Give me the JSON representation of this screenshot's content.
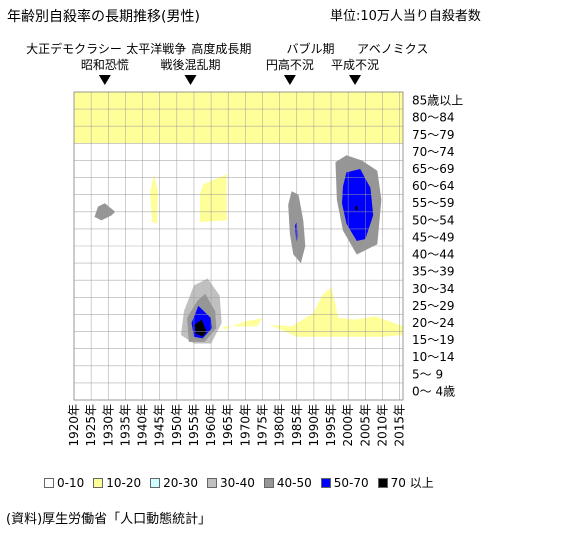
{
  "header": {
    "title": "年齢別自殺率の長期推移(男性)",
    "unit": "単位:10万人当り自殺者数"
  },
  "source": "(資料)厚生労働省「人口動態統計」",
  "chart_data": {
    "type": "heatmap",
    "title": "年齢別自殺率の長期推移(男性)",
    "x_categories": [
      "1920年",
      "1925年",
      "1930年",
      "1935年",
      "1940年",
      "1945年",
      "1950年",
      "1955年",
      "1960年",
      "1965年",
      "1970年",
      "1975年",
      "1980年",
      "1985年",
      "1990年",
      "1995年",
      "2000年",
      "2005年",
      "2010年",
      "2015年"
    ],
    "y_categories": [
      "0〜 4歳",
      "5〜 9",
      "10〜14",
      "15〜19",
      "20〜24",
      "25〜29",
      "30〜34",
      "35〜39",
      "40〜44",
      "45〜49",
      "50〜54",
      "55〜59",
      "60〜64",
      "65〜69",
      "70〜74",
      "75〜79",
      "80〜84",
      "85歳以上"
    ],
    "legend": [
      {
        "label": "0-10",
        "color": "#ffffff"
      },
      {
        "label": "10-20",
        "color": "#ffff99"
      },
      {
        "label": "20-30",
        "color": "#ccffff"
      },
      {
        "label": "30-40",
        "color": "#c0c0c0"
      },
      {
        "label": "40-50",
        "color": "#969696"
      },
      {
        "label": "50-70",
        "color": "#0000ff"
      },
      {
        "label": "70 以上",
        "color": "#000000"
      }
    ],
    "grid": true,
    "band_upper_bounds": [
      {
        "x": 1920,
        "b": [
          15,
          17.2,
          18,
          19.6,
          20.7,
          22
        ]
      },
      {
        "x": 1925,
        "b": [
          15,
          16.8,
          17,
          18.1,
          18.8,
          18
        ]
      },
      {
        "x": 1928,
        "b": [
          15,
          16.6,
          16.7,
          17.2,
          17.5,
          17
        ]
      },
      {
        "x": 1932,
        "b": [
          15,
          16.8,
          17,
          17.5,
          17.8,
          17.6
        ]
      },
      {
        "x": 1936,
        "b": [
          15,
          16.9,
          17.5,
          18.8,
          19.2,
          19.4
        ]
      },
      {
        "x": 1940,
        "b": [
          15,
          17,
          17.4,
          19.5,
          20,
          20.7
        ]
      },
      {
        "x": 1944,
        "b": [
          15,
          16.8,
          16.9,
          18.3,
          18.7,
          18.7
        ]
      },
      {
        "x": 1948,
        "b": [
          15,
          17.1,
          17.6,
          19.8,
          20.6,
          21
        ]
      },
      {
        "x": 1952,
        "b": [
          15,
          17.2,
          18,
          20.5,
          21.2,
          22
        ]
      },
      {
        "x": 1956,
        "b": [
          15,
          17.3,
          18.3,
          21,
          21.6,
          22.4
        ]
      },
      {
        "x": 1960,
        "b": [
          15,
          17.2,
          18,
          21.5,
          22.6,
          23
        ]
      },
      {
        "x": 1964,
        "b": [
          15,
          17.1,
          17.9,
          22.5,
          23.2,
          23.6
        ]
      },
      {
        "x": 1968,
        "b": [
          15,
          17.1,
          17.9,
          22.8,
          23.5,
          24.1
        ]
      },
      {
        "x": 1972,
        "b": [
          15,
          17.1,
          17.9,
          22.7,
          23.6,
          24.6
        ]
      },
      {
        "x": 1976,
        "b": [
          15,
          17.1,
          17.9,
          22.2,
          23.6,
          25.1
        ]
      },
      {
        "x": 1980,
        "b": [
          15,
          17.2,
          18,
          21.9,
          23.8,
          25.4
        ]
      },
      {
        "x": 1984,
        "b": [
          15,
          17.1,
          17.9,
          21.5,
          23.8,
          25.8
        ]
      },
      {
        "x": 1988,
        "b": [
          15,
          17.1,
          17.9,
          20.9,
          23.1,
          26.5
        ]
      },
      {
        "x": 1992,
        "b": [
          15,
          17.1,
          17.9,
          20.2,
          22.7,
          27.1
        ]
      },
      {
        "x": 1996,
        "b": [
          15,
          17.1,
          17.9,
          19.6,
          22.2,
          27.6
        ]
      },
      {
        "x": 2000,
        "b": [
          15,
          17.2,
          18.4,
          18.8,
          20.6,
          28.3
        ]
      },
      {
        "x": 2004,
        "b": [
          15,
          17.2,
          18.3,
          18.6,
          20.2,
          28.8
        ]
      },
      {
        "x": 2008,
        "b": [
          15,
          17.2,
          18.3,
          18.8,
          20.8,
          29.6
        ]
      },
      {
        "x": 2012,
        "b": [
          15,
          17.3,
          18.6,
          19.3,
          21.7,
          30
        ]
      },
      {
        "x": 2016,
        "b": [
          15,
          17.3,
          18.8,
          20,
          22.4,
          30
        ]
      }
    ],
    "extra_regions": [
      {
        "color": "#ffff99",
        "pts": [
          [
            1942.2,
            12.1
          ],
          [
            1942.8,
            10.4
          ],
          [
            1944.2,
            10.3
          ],
          [
            1944.5,
            12.2
          ],
          [
            1943.3,
            13.2
          ]
        ]
      },
      {
        "color": "#ffff99",
        "pts": [
          [
            1956.7,
            10.4
          ],
          [
            1956.8,
            12.1
          ],
          [
            1957.7,
            12.6
          ],
          [
            1964.5,
            13.2
          ],
          [
            1964.6,
            10.5
          ]
        ]
      },
      {
        "color": "#ffff99",
        "pts": [
          [
            1963.5,
            4.3
          ],
          [
            1963.6,
            4.1
          ],
          [
            1966,
            4.3
          ],
          [
            1970,
            4.6
          ],
          [
            1973,
            4.7
          ],
          [
            1975,
            4.8
          ],
          [
            1974,
            4.5
          ],
          [
            1973.5,
            4.3
          ],
          [
            1965,
            4.3
          ]
        ]
      },
      {
        "color": "#ffff99",
        "pts": [
          [
            1977,
            4.4
          ],
          [
            1983.5,
            4.3
          ],
          [
            1990,
            5.1
          ],
          [
            1992.3,
            6.1
          ],
          [
            1995,
            6.6
          ],
          [
            1996.3,
            5.6
          ],
          [
            1997.1,
            4.8
          ],
          [
            2002,
            4.7
          ],
          [
            2008,
            4.9
          ],
          [
            2016,
            4.3
          ],
          [
            2016,
            3.8
          ],
          [
            2010,
            3.7
          ],
          [
            2001,
            3.7
          ],
          [
            1985,
            3.7
          ]
        ]
      },
      {
        "color": "#c0c0c0",
        "pts": [
          [
            1952.1,
            5.2
          ],
          [
            1955,
            6.7
          ],
          [
            1959,
            7.1
          ],
          [
            1962.5,
            6.1
          ],
          [
            1963.1,
            4.5
          ],
          [
            1960,
            3.3
          ],
          [
            1955,
            3.3
          ],
          [
            1951.2,
            3.8
          ]
        ]
      },
      {
        "color": "#969696",
        "pts": [
          [
            1953,
            4.8
          ],
          [
            1956,
            5.8
          ],
          [
            1958.3,
            6.2
          ],
          [
            1961.2,
            5.2
          ],
          [
            1961.5,
            4.2
          ],
          [
            1958.1,
            3.4
          ],
          [
            1953.5,
            3.4
          ]
        ]
      },
      {
        "color": "#0000ff",
        "pts": [
          [
            1954.3,
            4.5
          ],
          [
            1956.3,
            5.5
          ],
          [
            1959.9,
            4.8
          ],
          [
            1960.3,
            4.2
          ],
          [
            1957.5,
            3.6
          ],
          [
            1955,
            3.7
          ]
        ]
      },
      {
        "color": "#000000",
        "pts": [
          [
            1955.2,
            4.4
          ],
          [
            1957.3,
            4.7
          ],
          [
            1958.6,
            4
          ],
          [
            1957.6,
            3.7
          ],
          [
            1955.5,
            3.9
          ]
        ]
      },
      {
        "color": "#ffffff",
        "pts": [
          [
            1934.3,
            3.9
          ],
          [
            1937.5,
            4.3
          ],
          [
            1939.6,
            4.3
          ],
          [
            1938.7,
            4
          ],
          [
            1935.5,
            3.8
          ]
        ]
      },
      {
        "color": "#969696",
        "pts": [
          [
            1926,
            10.7
          ],
          [
            1928,
            10.5
          ],
          [
            1931,
            10.8
          ],
          [
            1932,
            11
          ],
          [
            1929,
            11.5
          ],
          [
            1927,
            11.3
          ]
        ]
      },
      {
        "color": "#969696",
        "pts": [
          [
            1982.5,
            11.4
          ],
          [
            1983,
            9.7
          ],
          [
            1984,
            8.5
          ],
          [
            1986.2,
            8
          ],
          [
            1987.5,
            9
          ],
          [
            1986.9,
            10.5
          ],
          [
            1985.5,
            12
          ],
          [
            1983.5,
            12.2
          ]
        ]
      },
      {
        "color": "#0000ff",
        "pts": [
          [
            1984.5,
            10.2
          ],
          [
            1984.8,
            9.4
          ],
          [
            1985,
            9.2
          ],
          [
            1985.2,
            9.6
          ],
          [
            1985,
            10.4
          ]
        ]
      },
      {
        "color": "#969696",
        "pts": [
          [
            1996.3,
            13.9
          ],
          [
            1996.7,
            11.7
          ],
          [
            1998.5,
            9.9
          ],
          [
            2002.5,
            8.5
          ],
          [
            2008.5,
            9.1
          ],
          [
            2009.7,
            11.7
          ],
          [
            2008.5,
            13.4
          ],
          [
            2004,
            14
          ],
          [
            1999.5,
            14.3
          ]
        ]
      },
      {
        "color": "#0000ff",
        "pts": [
          [
            1998.5,
            12.5
          ],
          [
            1998.2,
            11.5
          ],
          [
            1999.5,
            10.3
          ],
          [
            2002.5,
            9.3
          ],
          [
            2005,
            9.4
          ],
          [
            2007.3,
            10.8
          ],
          [
            2006.5,
            12.4
          ],
          [
            2003.5,
            13.5
          ],
          [
            1999.5,
            13.3
          ]
        ]
      },
      {
        "color": "#000000",
        "pts": [
          [
            2001.9,
            11.2
          ],
          [
            2002.4,
            11.05
          ],
          [
            2002.8,
            11.2
          ],
          [
            2002.4,
            11.4
          ]
        ]
      }
    ],
    "events": [
      {
        "name": "大正デモクラシー",
        "year": 1920,
        "row": 1,
        "arrow": false
      },
      {
        "name": "昭和恐慌",
        "year": 1929,
        "row": 2,
        "arrow": true
      },
      {
        "name": "太平洋戦争",
        "year": 1944,
        "row": 1,
        "arrow": false
      },
      {
        "name": "戦後混乱期",
        "year": 1954,
        "row": 2,
        "arrow": true
      },
      {
        "name": "高度成長期",
        "year": 1963,
        "row": 1,
        "arrow": false
      },
      {
        "name": "円高不況",
        "year": 1983,
        "row": 2,
        "arrow": true
      },
      {
        "name": "バブル期",
        "year": 1989,
        "row": 1,
        "arrow": false
      },
      {
        "name": "平成不況",
        "year": 2002,
        "row": 2,
        "arrow": true
      },
      {
        "name": "アベノミクス",
        "year": 2013,
        "row": 1,
        "arrow": false
      }
    ]
  }
}
